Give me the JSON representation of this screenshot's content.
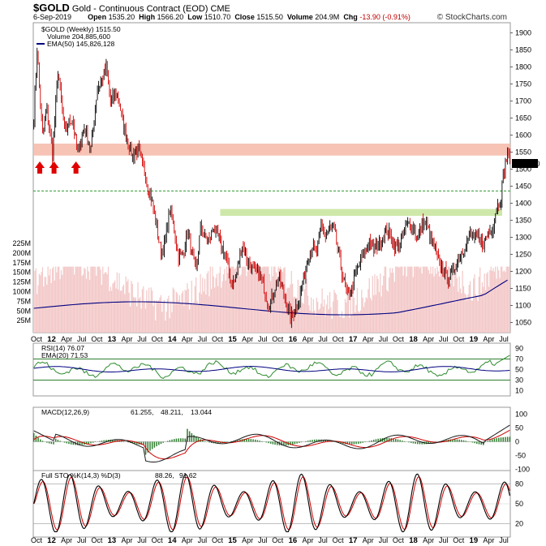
{
  "header": {
    "symbol": "$GOLD",
    "name": "Gold - Continuous Contract (EOD)",
    "exchange": "CME",
    "date": "6-Sep-2019",
    "open_label": "Open",
    "open": "1535.20",
    "high_label": "High",
    "high": "1566.20",
    "low_label": "Low",
    "low": "1510.70",
    "close_label": "Close",
    "close": "1515.50",
    "volume_label": "Volume",
    "volume": "204.9M",
    "chg_label": "Chg",
    "chg": "-13.90 (-0.91%)",
    "brand": "© StockCharts.com"
  },
  "colors": {
    "up": "#000000",
    "down": "#d40000",
    "ema50": "#000080",
    "ema20": "#000080",
    "rsi": "#2e8b2e",
    "macd": "#1a1a1a",
    "macd_signal": "#d00000",
    "histogram": "#2e7d2e",
    "sto_k": "#000000",
    "sto_d": "#d00000",
    "resistance_zone": "#f4b8a8",
    "support_zone": "#c8e6a0",
    "guide_line": "#2e9a2e",
    "volume": "#f3c8c8",
    "arrow": "#e00000"
  },
  "chart_data": [
    {
      "type": "candlestick",
      "legend": [
        "$GOLD (Weekly) 1515.50",
        "Volume 204,885,600",
        "EMA(50) 145,826,128"
      ],
      "x_ticks": [
        "Oct",
        "12",
        "Apr",
        "Jul",
        "Oct",
        "13",
        "Apr",
        "Jul",
        "Oct",
        "14",
        "Apr",
        "Jul",
        "Oct",
        "15",
        "Apr",
        "Jul",
        "Oct",
        "16",
        "Apr",
        "Jul",
        "Oct",
        "17",
        "Apr",
        "Jul",
        "Oct",
        "18",
        "Apr",
        "Jul",
        "Oct",
        "19",
        "Apr",
        "Jul"
      ],
      "x_tick_bold": [
        "12",
        "13",
        "14",
        "15",
        "16",
        "17",
        "18",
        "19"
      ],
      "ylim": [
        1020,
        1930
      ],
      "y_ticks": [
        1050,
        1100,
        1150,
        1200,
        1250,
        1300,
        1350,
        1400,
        1450,
        1500,
        1550,
        1600,
        1650,
        1700,
        1750,
        1800,
        1850,
        1900
      ],
      "last_price": "1515.50",
      "resistance_zone": [
        1540,
        1575
      ],
      "support_zone": [
        1363,
        1383
      ],
      "guide_level": 1436,
      "arrows_at": [
        "2011-10",
        "2011-12",
        "2012-04"
      ],
      "path": [
        [
          0,
          1650
        ],
        [
          3,
          1850
        ],
        [
          8,
          1600
        ],
        [
          12,
          1680
        ],
        [
          17,
          1540
        ],
        [
          22,
          1790
        ],
        [
          28,
          1610
        ],
        [
          35,
          1650
        ],
        [
          40,
          1550
        ],
        [
          46,
          1620
        ],
        [
          52,
          1560
        ],
        [
          58,
          1740
        ],
        [
          62,
          1760
        ],
        [
          66,
          1800
        ],
        [
          70,
          1700
        ],
        [
          76,
          1720
        ],
        [
          80,
          1660
        ],
        [
          84,
          1600
        ],
        [
          90,
          1540
        ],
        [
          95,
          1560
        ],
        [
          100,
          1500
        ],
        [
          104,
          1450
        ],
        [
          108,
          1400
        ],
        [
          112,
          1330
        ],
        [
          116,
          1250
        ],
        [
          120,
          1290
        ],
        [
          124,
          1380
        ],
        [
          128,
          1320
        ],
        [
          132,
          1240
        ],
        [
          136,
          1250
        ],
        [
          140,
          1320
        ],
        [
          144,
          1250
        ],
        [
          148,
          1200
        ],
        [
          152,
          1330
        ],
        [
          156,
          1300
        ],
        [
          160,
          1290
        ],
        [
          164,
          1330
        ],
        [
          168,
          1300
        ],
        [
          172,
          1270
        ],
        [
          176,
          1230
        ],
        [
          180,
          1160
        ],
        [
          184,
          1180
        ],
        [
          190,
          1280
        ],
        [
          195,
          1230
        ],
        [
          200,
          1200
        ],
        [
          206,
          1190
        ],
        [
          210,
          1150
        ],
        [
          214,
          1100
        ],
        [
          218,
          1130
        ],
        [
          222,
          1180
        ],
        [
          226,
          1160
        ],
        [
          230,
          1110
        ],
        [
          234,
          1060
        ],
        [
          238,
          1090
        ],
        [
          242,
          1120
        ],
        [
          246,
          1180
        ],
        [
          250,
          1240
        ],
        [
          254,
          1270
        ],
        [
          258,
          1250
        ],
        [
          262,
          1340
        ],
        [
          266,
          1300
        ],
        [
          270,
          1330
        ],
        [
          274,
          1320
        ],
        [
          278,
          1250
        ],
        [
          282,
          1180
        ],
        [
          286,
          1130
        ],
        [
          290,
          1150
        ],
        [
          294,
          1200
        ],
        [
          298,
          1230
        ],
        [
          302,
          1260
        ],
        [
          306,
          1290
        ],
        [
          310,
          1260
        ],
        [
          314,
          1280
        ],
        [
          318,
          1300
        ],
        [
          322,
          1320
        ],
        [
          326,
          1300
        ],
        [
          330,
          1270
        ],
        [
          334,
          1280
        ],
        [
          338,
          1320
        ],
        [
          342,
          1340
        ],
        [
          346,
          1330
        ],
        [
          350,
          1300
        ],
        [
          354,
          1340
        ],
        [
          358,
          1340
        ],
        [
          362,
          1300
        ],
        [
          366,
          1260
        ],
        [
          370,
          1220
        ],
        [
          374,
          1200
        ],
        [
          378,
          1180
        ],
        [
          382,
          1200
        ],
        [
          386,
          1230
        ],
        [
          390,
          1250
        ],
        [
          394,
          1280
        ],
        [
          398,
          1310
        ],
        [
          402,
          1300
        ],
        [
          406,
          1290
        ],
        [
          410,
          1280
        ],
        [
          414,
          1310
        ],
        [
          418,
          1330
        ],
        [
          422,
          1390
        ],
        [
          426,
          1420
        ],
        [
          428,
          1480
        ],
        [
          430,
          1520
        ],
        [
          432,
          1550
        ],
        [
          434,
          1515
        ]
      ]
    },
    {
      "type": "line",
      "legend": [
        "RSI(14) 76.07",
        "EMA(20) 71.53"
      ],
      "ylim": [
        0,
        100
      ],
      "y_ticks": [
        10,
        30,
        50,
        70,
        90
      ],
      "reference_lines": [
        30,
        70
      ]
    },
    {
      "type": "line",
      "legend": [
        "MACD(12,26,9)",
        "61.255",
        "48.211",
        "13.044"
      ],
      "ylim": [
        -125,
        125
      ],
      "y_ticks": [
        -100,
        -50,
        0,
        50,
        100
      ]
    },
    {
      "type": "line",
      "legend": [
        "Full STO %K(14,3) %D(3)",
        "88.26",
        "91.62"
      ],
      "ylim": [
        0,
        100
      ],
      "y_ticks": [
        20,
        50,
        80
      ],
      "reference_lines": [
        20,
        80
      ]
    }
  ]
}
